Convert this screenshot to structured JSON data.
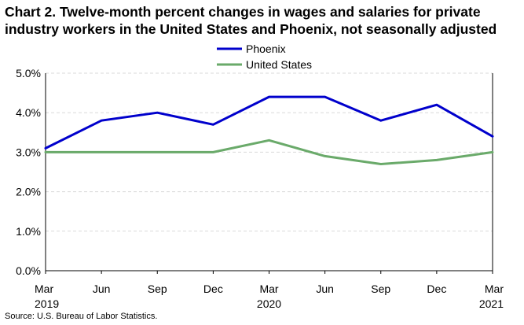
{
  "chart_data": {
    "type": "line",
    "title_line1": "Chart 2. Twelve-month percent changes in wages and salaries for private",
    "title_line2": "industry workers in the United States and Phoenix, not seasonally adjusted",
    "categories": [
      {
        "month": "Mar",
        "year": "2019"
      },
      {
        "month": "Jun",
        "year": ""
      },
      {
        "month": "Sep",
        "year": ""
      },
      {
        "month": "Dec",
        "year": ""
      },
      {
        "month": "Mar",
        "year": "2020"
      },
      {
        "month": "Jun",
        "year": ""
      },
      {
        "month": "Sep",
        "year": ""
      },
      {
        "month": "Dec",
        "year": ""
      },
      {
        "month": "Mar",
        "year": "2021"
      }
    ],
    "series": [
      {
        "name": "Phoenix",
        "color": "#0000cc",
        "values": [
          3.1,
          3.8,
          4.0,
          3.7,
          4.4,
          4.4,
          3.8,
          4.2,
          3.4
        ]
      },
      {
        "name": "United States",
        "color": "#6aaa6a",
        "values": [
          3.0,
          3.0,
          3.0,
          3.0,
          3.3,
          2.9,
          2.7,
          2.8,
          3.0
        ]
      }
    ],
    "yticks": [
      "0.0%",
      "1.0%",
      "2.0%",
      "3.0%",
      "4.0%",
      "5.0%"
    ],
    "ylim": [
      0,
      5
    ],
    "xlabel": "",
    "ylabel": "",
    "legend_position": "top-center",
    "source": "Source: U.S. Bureau of Labor Statistics."
  }
}
